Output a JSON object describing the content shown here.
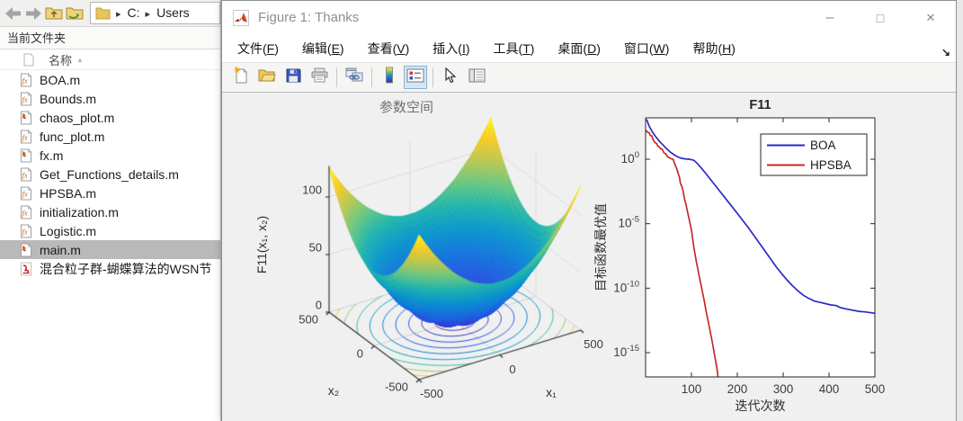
{
  "file_panel": {
    "panel_title": "当前文件夹",
    "column_header": "名称",
    "breadcrumb": {
      "segments": [
        "C:",
        "Users"
      ]
    },
    "nav_buttons": [
      "back",
      "forward",
      "up-folder",
      "browse-folder"
    ],
    "files": [
      {
        "name": "BOA.m",
        "icon": "matlab-function",
        "selected": false
      },
      {
        "name": "Bounds.m",
        "icon": "matlab-function",
        "selected": false
      },
      {
        "name": "chaos_plot.m",
        "icon": "matlab-script",
        "selected": false
      },
      {
        "name": "func_plot.m",
        "icon": "matlab-function",
        "selected": false
      },
      {
        "name": "fx.m",
        "icon": "matlab-script",
        "selected": false
      },
      {
        "name": "Get_Functions_details.m",
        "icon": "matlab-function",
        "selected": false
      },
      {
        "name": "HPSBA.m",
        "icon": "matlab-function",
        "selected": false
      },
      {
        "name": "initialization.m",
        "icon": "matlab-function",
        "selected": false
      },
      {
        "name": "Logistic.m",
        "icon": "matlab-function",
        "selected": false
      },
      {
        "name": "main.m",
        "icon": "matlab-script",
        "selected": true
      },
      {
        "name": "混合粒子群-蝴蝶算法的WSN节",
        "icon": "pdf",
        "selected": false
      }
    ]
  },
  "figure_window": {
    "title": "Figure 1: Thanks",
    "menu": [
      {
        "key": "file",
        "label": "文件(F)"
      },
      {
        "key": "edit",
        "label": "编辑(E)"
      },
      {
        "key": "view",
        "label": "查看(V)"
      },
      {
        "key": "insert",
        "label": "插入(I)"
      },
      {
        "key": "tools",
        "label": "工具(T)"
      },
      {
        "key": "desktop",
        "label": "桌面(D)"
      },
      {
        "key": "window",
        "label": "窗口(W)"
      },
      {
        "key": "help",
        "label": "帮助(H)"
      }
    ],
    "toolbar": [
      "new-figure",
      "open-file",
      "save-figure",
      "print-figure",
      "|",
      "link-plot",
      "|",
      "insert-colorbar",
      "insert-legend",
      "|",
      "edit-plot",
      "property-inspector"
    ],
    "toolbar_active": "insert-legend",
    "controls": [
      "minimize",
      "maximize",
      "close"
    ]
  },
  "chart_data": [
    {
      "type": "surface",
      "title": "参数空间",
      "function_label": "F11",
      "zlabel": "F11(x₁, x₂)",
      "xlabel": "x₁",
      "ylabel": "x₂",
      "x_range": [
        -500,
        500
      ],
      "y_range": [
        -500,
        500
      ],
      "z_range": [
        0,
        127
      ],
      "x_ticks": [
        -500,
        0,
        500
      ],
      "y_ticks": [
        -500,
        0,
        500
      ],
      "z_ticks": [
        0,
        50,
        100
      ],
      "formula": "(x₁²+x₂²)/4000 − cos(x₁)·cos(x₂/√2) + 1",
      "colormap": "parula",
      "contours_below": true,
      "contour_radii": [
        110,
        180,
        250,
        320,
        390,
        460,
        530,
        600,
        660
      ]
    },
    {
      "type": "line",
      "title": "F11",
      "xlabel": "迭代次数",
      "ylabel": "目标函数最优值",
      "x_scale": "linear",
      "y_scale": "log",
      "xlim": [
        0,
        500
      ],
      "ylim_log10": [
        -16.9,
        3.2
      ],
      "x_ticks": [
        100,
        200,
        300,
        400,
        500
      ],
      "y_tick_exponents": [
        0,
        -5,
        -10,
        -15
      ],
      "legend_position": "northeast",
      "axis_color": "#262626",
      "series": [
        {
          "name": "BOA",
          "color": "#2a2ac8",
          "points_iter_log10": [
            [
              2,
              3.1
            ],
            [
              8,
              2.55
            ],
            [
              15,
              2.1
            ],
            [
              22,
              1.75
            ],
            [
              30,
              1.4
            ],
            [
              38,
              1.1
            ],
            [
              46,
              0.8
            ],
            [
              54,
              0.55
            ],
            [
              62,
              0.35
            ],
            [
              70,
              0.18
            ],
            [
              78,
              0.08
            ],
            [
              86,
              0.03
            ],
            [
              95,
              0.0
            ],
            [
              105,
              -0.08
            ],
            [
              112,
              -0.3
            ],
            [
              120,
              -0.62
            ],
            [
              130,
              -1.05
            ],
            [
              140,
              -1.5
            ],
            [
              150,
              -1.95
            ],
            [
              160,
              -2.4
            ],
            [
              170,
              -2.85
            ],
            [
              180,
              -3.3
            ],
            [
              190,
              -3.75
            ],
            [
              200,
              -4.2
            ],
            [
              212,
              -4.75
            ],
            [
              224,
              -5.3
            ],
            [
              236,
              -5.9
            ],
            [
              248,
              -6.5
            ],
            [
              260,
              -7.1
            ],
            [
              272,
              -7.7
            ],
            [
              284,
              -8.3
            ],
            [
              296,
              -8.85
            ],
            [
              308,
              -9.35
            ],
            [
              320,
              -9.8
            ],
            [
              332,
              -10.2
            ],
            [
              344,
              -10.55
            ],
            [
              356,
              -10.8
            ],
            [
              368,
              -11.0
            ],
            [
              380,
              -11.1
            ],
            [
              392,
              -11.2
            ],
            [
              404,
              -11.3
            ],
            [
              416,
              -11.35
            ],
            [
              424,
              -11.5
            ],
            [
              436,
              -11.6
            ],
            [
              450,
              -11.7
            ],
            [
              465,
              -11.8
            ],
            [
              480,
              -11.85
            ],
            [
              500,
              -11.95
            ]
          ]
        },
        {
          "name": "HPSBA",
          "color": "#c82a2a",
          "points_iter_log10": [
            [
              1,
              2.25
            ],
            [
              4,
              2.1
            ],
            [
              8,
              2.05
            ],
            [
              10,
              1.85
            ],
            [
              14,
              1.8
            ],
            [
              16,
              1.55
            ],
            [
              20,
              1.3
            ],
            [
              24,
              1.22
            ],
            [
              27,
              1.0
            ],
            [
              30,
              0.95
            ],
            [
              33,
              0.8
            ],
            [
              36,
              0.78
            ],
            [
              40,
              0.5
            ],
            [
              44,
              0.42
            ],
            [
              48,
              0.18
            ],
            [
              52,
              0.12
            ],
            [
              55,
              0.05
            ],
            [
              60,
              0.0
            ],
            [
              63,
              -0.3
            ],
            [
              66,
              -0.6
            ],
            [
              68,
              -0.75
            ],
            [
              71,
              -1.1
            ],
            [
              74,
              -1.4
            ],
            [
              76,
              -1.9
            ],
            [
              79,
              -2.1
            ],
            [
              82,
              -2.5
            ],
            [
              85,
              -3.1
            ],
            [
              88,
              -3.5
            ],
            [
              91,
              -4.0
            ],
            [
              94,
              -4.5
            ],
            [
              97,
              -5.0
            ],
            [
              100,
              -5.5
            ],
            [
              102,
              -6.0
            ],
            [
              105,
              -6.8
            ],
            [
              108,
              -7.4
            ],
            [
              111,
              -8.0
            ],
            [
              114,
              -8.5
            ],
            [
              117,
              -9.1
            ],
            [
              120,
              -9.6
            ],
            [
              124,
              -10.3
            ],
            [
              128,
              -11.0
            ],
            [
              132,
              -11.8
            ],
            [
              136,
              -12.5
            ],
            [
              140,
              -13.2
            ],
            [
              144,
              -13.9
            ],
            [
              148,
              -14.7
            ],
            [
              152,
              -15.5
            ],
            [
              155,
              -16.1
            ],
            [
              158,
              -16.9
            ],
            [
              160,
              -17.6
            ]
          ]
        }
      ]
    }
  ]
}
